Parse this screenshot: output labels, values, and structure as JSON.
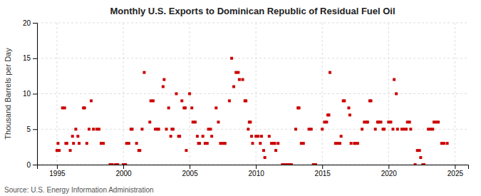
{
  "chart_data": {
    "type": "scatter",
    "title": "Monthly U.S. Exports to Dominican Republic of Residual Fuel Oil",
    "ylabel": "Thousand Barrels per Day",
    "annotations": [
      "Source: U.S. Energy Information Administration"
    ],
    "color": "#cc0000",
    "marker": "square",
    "grid": true,
    "xlim": [
      1993.5,
      2026.0
    ],
    "xticks": [
      1995,
      2000,
      2005,
      2010,
      2015,
      2020,
      2025
    ],
    "ylim": [
      0,
      20
    ],
    "yticks": [
      0,
      5,
      10,
      15,
      20
    ],
    "x": [
      1995.0,
      1995.08,
      1995.17,
      1995.42,
      1995.58,
      1995.67,
      1995.75,
      1996.0,
      1996.17,
      1996.25,
      1996.42,
      1996.58,
      1996.67,
      1997.0,
      1997.08,
      1997.25,
      1997.42,
      1997.58,
      1997.75,
      1998.0,
      1998.17,
      1998.33,
      1998.5,
      1999.0,
      1999.17,
      1999.42,
      1999.58,
      2000.0,
      2000.17,
      2000.25,
      2000.42,
      2000.58,
      2000.67,
      2001.0,
      2001.17,
      2001.25,
      2001.42,
      2001.58,
      2002.0,
      2002.08,
      2002.25,
      2002.42,
      2002.58,
      2002.67,
      2003.0,
      2003.08,
      2003.25,
      2003.42,
      2003.58,
      2003.67,
      2003.75,
      2004.0,
      2004.17,
      2004.25,
      2004.42,
      2004.58,
      2004.67,
      2004.75,
      2005.0,
      2005.17,
      2005.25,
      2005.42,
      2005.58,
      2005.67,
      2005.75,
      2006.0,
      2006.17,
      2006.33,
      2006.42,
      2006.58,
      2006.67,
      2007.0,
      2007.17,
      2007.33,
      2007.5,
      2007.67,
      2008.0,
      2008.17,
      2008.33,
      2008.5,
      2008.67,
      2008.75,
      2009.0,
      2009.17,
      2009.25,
      2009.42,
      2009.5,
      2009.58,
      2009.67,
      2009.75,
      2010.0,
      2010.17,
      2010.33,
      2010.42,
      2010.58,
      2010.67,
      2011.0,
      2011.17,
      2011.33,
      2011.42,
      2011.5,
      2011.67,
      2012.0,
      2012.17,
      2012.33,
      2012.42,
      2012.58,
      2012.67,
      2013.0,
      2013.17,
      2013.25,
      2013.42,
      2013.58,
      2014.0,
      2014.17,
      2014.33,
      2014.5,
      2015.0,
      2015.17,
      2015.33,
      2015.42,
      2015.5,
      2015.58,
      2016.0,
      2016.17,
      2016.33,
      2016.42,
      2016.58,
      2016.67,
      2017.0,
      2017.08,
      2017.17,
      2017.42,
      2017.5,
      2017.67,
      2018.0,
      2018.17,
      2018.33,
      2018.42,
      2018.58,
      2018.67,
      2019.0,
      2019.17,
      2019.25,
      2019.42,
      2019.58,
      2019.67,
      2020.0,
      2020.17,
      2020.33,
      2020.42,
      2020.58,
      2020.67,
      2021.0,
      2021.17,
      2021.33,
      2021.42,
      2021.58,
      2021.67,
      2022.0,
      2022.17,
      2022.33,
      2022.42,
      2022.58,
      2022.67,
      2023.0,
      2023.17,
      2023.33,
      2023.42,
      2023.58,
      2023.75,
      2024.0,
      2024.17,
      2024.42
    ],
    "values": [
      2,
      3,
      2,
      8,
      8,
      3,
      3,
      2,
      4,
      3,
      5,
      4,
      3,
      8,
      8,
      3,
      5,
      9,
      5,
      5,
      5,
      3,
      3,
      0,
      0,
      0,
      0,
      0,
      0,
      3,
      3,
      5,
      5,
      3,
      2,
      2,
      5,
      13,
      6,
      9,
      9,
      5,
      5,
      5,
      11,
      12,
      5,
      8,
      4,
      5,
      5,
      10,
      4,
      4,
      9,
      8,
      8,
      2,
      10,
      8,
      6,
      6,
      4,
      3,
      3,
      4,
      3,
      3,
      5,
      5,
      4,
      8,
      6,
      3,
      3,
      3,
      9,
      15,
      11,
      13,
      13,
      12,
      12,
      9,
      9,
      5,
      6,
      6,
      4,
      3,
      4,
      4,
      3,
      4,
      2,
      1,
      4,
      3,
      3,
      3,
      2,
      3,
      0,
      0,
      0,
      0,
      0,
      0,
      5,
      8,
      8,
      3,
      3,
      5,
      5,
      0,
      0,
      5,
      6,
      6,
      7,
      7,
      13,
      3,
      3,
      3,
      4,
      9,
      9,
      8,
      7,
      3,
      3,
      3,
      3,
      5,
      6,
      6,
      6,
      9,
      9,
      5,
      6,
      6,
      6,
      5,
      5,
      6,
      6,
      5,
      12,
      10,
      5,
      5,
      5,
      5,
      6,
      6,
      5,
      0,
      2,
      2,
      1,
      0,
      0,
      5,
      5,
      5,
      6,
      6,
      6,
      3,
      3,
      3
    ]
  }
}
